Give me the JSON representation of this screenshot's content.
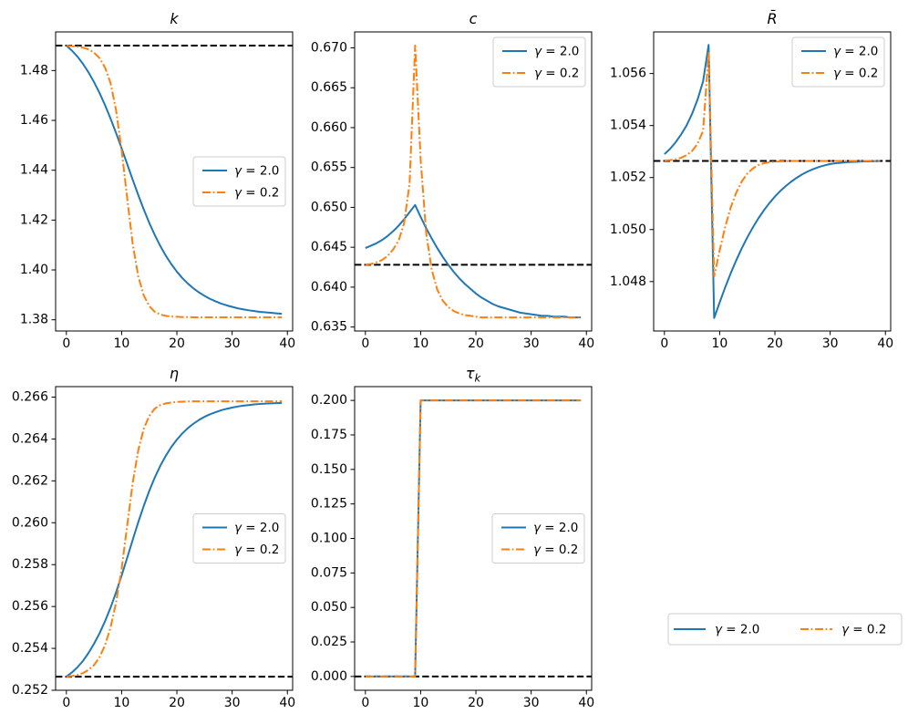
{
  "figure": {
    "background": "#ffffff",
    "colors": {
      "series_blue": "#1f77b4",
      "series_orange": "#ff7f0e",
      "steady_state_line": "#000000",
      "legend_border": "#cccccc"
    }
  },
  "chart_data": {
    "type": "line",
    "x": [
      0,
      1,
      2,
      3,
      4,
      5,
      6,
      7,
      8,
      9,
      10,
      11,
      12,
      13,
      14,
      15,
      16,
      17,
      18,
      19,
      20,
      21,
      22,
      23,
      24,
      25,
      26,
      27,
      28,
      29,
      30,
      31,
      32,
      33,
      34,
      35,
      36,
      37,
      38,
      39
    ],
    "xlabel": "",
    "xlim": [
      -1.95,
      40.95
    ],
    "xticks": [
      0,
      10,
      20,
      30,
      40
    ],
    "grid": false,
    "legend_labels": [
      "γ = 2.0",
      "γ = 0.2"
    ],
    "panels": [
      {
        "title": "k",
        "legend_loc": "center right",
        "ylim": [
          1.3755,
          1.4955
        ],
        "yticks": [
          1.38,
          1.4,
          1.42,
          1.44,
          1.46,
          1.48
        ],
        "ytick_decimals": 2,
        "steady_state": 1.49,
        "series": [
          {
            "name": "γ = 2.0",
            "color": "#1f77b4",
            "style": "solid",
            "values": [
              1.49,
              1.488,
              1.4856,
              1.4827,
              1.4793,
              1.4754,
              1.471,
              1.4661,
              1.4607,
              1.4549,
              1.4488,
              1.4425,
              1.4362,
              1.4301,
              1.4243,
              1.4189,
              1.414,
              1.4096,
              1.4057,
              1.4023,
              1.3993,
              1.3967,
              1.3945,
              1.3926,
              1.391,
              1.3896,
              1.3884,
              1.3874,
              1.3865,
              1.3858,
              1.3852,
              1.3846,
              1.3842,
              1.3838,
              1.3835,
              1.3832,
              1.383,
              1.3828,
              1.3826,
              1.3824
            ]
          },
          {
            "name": "γ = 0.2",
            "color": "#ff7f0e",
            "style": "dashdot",
            "values": [
              1.49,
              1.4898,
              1.4896,
              1.4892,
              1.4885,
              1.4872,
              1.485,
              1.4812,
              1.475,
              1.464,
              1.448,
              1.429,
              1.4105,
              1.3975,
              1.3898,
              1.3855,
              1.3832,
              1.3821,
              1.3816,
              1.3813,
              1.3812,
              1.3811,
              1.3811,
              1.381,
              1.381,
              1.381,
              1.381,
              1.381,
              1.381,
              1.381,
              1.381,
              1.381,
              1.381,
              1.381,
              1.381,
              1.381,
              1.381,
              1.381,
              1.381,
              1.381
            ]
          }
        ]
      },
      {
        "title": "c",
        "legend_loc": "upper right",
        "ylim": [
          0.6345,
          0.672
        ],
        "yticks": [
          0.635,
          0.64,
          0.645,
          0.65,
          0.655,
          0.66,
          0.665,
          0.67
        ],
        "ytick_decimals": 3,
        "steady_state": 0.6428,
        "series": [
          {
            "name": "γ = 2.0",
            "color": "#1f77b4",
            "style": "solid",
            "values": [
              0.6449,
              0.6452,
              0.6455,
              0.6459,
              0.6464,
              0.647,
              0.6477,
              0.6485,
              0.6494,
              0.6503,
              0.6488,
              0.6474,
              0.6461,
              0.6449,
              0.6438,
              0.6428,
              0.6419,
              0.6411,
              0.6404,
              0.6398,
              0.6392,
              0.6387,
              0.6383,
              0.6379,
              0.6376,
              0.6374,
              0.6372,
              0.637,
              0.6368,
              0.6367,
              0.6366,
              0.6365,
              0.6364,
              0.6364,
              0.6363,
              0.6363,
              0.6363,
              0.6362,
              0.6362,
              0.6362
            ]
          },
          {
            "name": "γ = 0.2",
            "color": "#ff7f0e",
            "style": "dashdot",
            "values": [
              0.6428,
              0.6429,
              0.6431,
              0.6434,
              0.6439,
              0.6447,
              0.6458,
              0.648,
              0.653,
              0.6703,
              0.656,
              0.6468,
              0.6422,
              0.6397,
              0.6383,
              0.6375,
              0.637,
              0.6367,
              0.6365,
              0.6364,
              0.6363,
              0.6362,
              0.6362,
              0.6362,
              0.6362,
              0.6362,
              0.6362,
              0.6362,
              0.6362,
              0.6362,
              0.6362,
              0.6362,
              0.6362,
              0.6362,
              0.6362,
              0.6362,
              0.6362,
              0.6362,
              0.6362,
              0.6362
            ]
          }
        ]
      },
      {
        "title": "R̄",
        "legend_loc": "upper right",
        "ylim": [
          1.0461,
          1.0576
        ],
        "yticks": [
          1.048,
          1.05,
          1.052,
          1.054,
          1.056
        ],
        "ytick_decimals": 3,
        "steady_state": 1.05264,
        "series": [
          {
            "name": "γ = 2.0",
            "color": "#1f77b4",
            "style": "solid",
            "values": [
              1.0529,
              1.0531,
              1.05335,
              1.05365,
              1.054,
              1.05445,
              1.055,
              1.0557,
              1.0571,
              1.0466,
              1.0472,
              1.04778,
              1.04832,
              1.04882,
              1.04928,
              1.0497,
              1.05008,
              1.05043,
              1.05074,
              1.05102,
              1.05127,
              1.05149,
              1.05168,
              1.05185,
              1.052,
              1.05213,
              1.05224,
              1.05233,
              1.05241,
              1.05247,
              1.05252,
              1.05255,
              1.05257,
              1.05259,
              1.0526,
              1.05261,
              1.05262,
              1.05262,
              1.05263,
              1.05263
            ]
          },
          {
            "name": "γ = 0.2",
            "color": "#ff7f0e",
            "style": "dashdot",
            "values": [
              1.05265,
              1.05267,
              1.0527,
              1.05276,
              1.05286,
              1.05302,
              1.0533,
              1.0538,
              1.0568,
              1.0482,
              1.0492,
              1.0501,
              1.05085,
              1.05142,
              1.05185,
              1.05215,
              1.05235,
              1.05248,
              1.05255,
              1.05259,
              1.05261,
              1.05262,
              1.05263,
              1.05264,
              1.05264,
              1.05264,
              1.05264,
              1.05264,
              1.05264,
              1.05264,
              1.05264,
              1.05264,
              1.05264,
              1.05264,
              1.05264,
              1.05264,
              1.05264,
              1.05264,
              1.05264,
              1.05264
            ]
          }
        ]
      },
      {
        "title": "η",
        "legend_loc": "center right",
        "ylim": [
          0.252,
          0.2665
        ],
        "yticks": [
          0.252,
          0.254,
          0.256,
          0.258,
          0.26,
          0.262,
          0.264,
          0.266
        ],
        "ytick_decimals": 3,
        "steady_state": 0.25265,
        "series": [
          {
            "name": "γ = 2.0",
            "color": "#1f77b4",
            "style": "solid",
            "values": [
              0.25265,
              0.25285,
              0.2531,
              0.2534,
              0.25378,
              0.25422,
              0.25472,
              0.2553,
              0.25595,
              0.25668,
              0.25748,
              0.25832,
              0.25918,
              0.26002,
              0.2608,
              0.26152,
              0.26216,
              0.26272,
              0.2632,
              0.26362,
              0.26397,
              0.26427,
              0.26452,
              0.26473,
              0.26491,
              0.26506,
              0.26518,
              0.26528,
              0.26537,
              0.26544,
              0.2655,
              0.26555,
              0.26559,
              0.26562,
              0.26565,
              0.26567,
              0.26569,
              0.2657,
              0.26571,
              0.26572
            ]
          },
          {
            "name": "γ = 0.2",
            "color": "#ff7f0e",
            "style": "dashdot",
            "values": [
              0.25265,
              0.25268,
              0.25273,
              0.25282,
              0.25297,
              0.2532,
              0.25358,
              0.25415,
              0.255,
              0.2562,
              0.2578,
              0.25985,
              0.2619,
              0.26345,
              0.26448,
              0.2651,
              0.26545,
              0.26562,
              0.2657,
              0.26574,
              0.26577,
              0.26578,
              0.26579,
              0.2658,
              0.2658,
              0.2658,
              0.2658,
              0.2658,
              0.2658,
              0.2658,
              0.2658,
              0.2658,
              0.2658,
              0.2658,
              0.2658,
              0.2658,
              0.2658,
              0.2658,
              0.2658,
              0.2658
            ]
          }
        ]
      },
      {
        "title": "τ_k",
        "legend_loc": "center right",
        "ylim": [
          -0.01,
          0.21
        ],
        "yticks": [
          0.0,
          0.025,
          0.05,
          0.075,
          0.1,
          0.125,
          0.15,
          0.175,
          0.2
        ],
        "ytick_decimals": 3,
        "steady_state": 0.0,
        "series": [
          {
            "name": "γ = 2.0",
            "color": "#1f77b4",
            "style": "solid",
            "values": [
              0,
              0,
              0,
              0,
              0,
              0,
              0,
              0,
              0,
              0,
              0.2,
              0.2,
              0.2,
              0.2,
              0.2,
              0.2,
              0.2,
              0.2,
              0.2,
              0.2,
              0.2,
              0.2,
              0.2,
              0.2,
              0.2,
              0.2,
              0.2,
              0.2,
              0.2,
              0.2,
              0.2,
              0.2,
              0.2,
              0.2,
              0.2,
              0.2,
              0.2,
              0.2,
              0.2,
              0.2
            ]
          },
          {
            "name": "γ = 0.2",
            "color": "#ff7f0e",
            "style": "dashdot",
            "values": [
              0,
              0,
              0,
              0,
              0,
              0,
              0,
              0,
              0,
              0,
              0.2,
              0.2,
              0.2,
              0.2,
              0.2,
              0.2,
              0.2,
              0.2,
              0.2,
              0.2,
              0.2,
              0.2,
              0.2,
              0.2,
              0.2,
              0.2,
              0.2,
              0.2,
              0.2,
              0.2,
              0.2,
              0.2,
              0.2,
              0.2,
              0.2,
              0.2,
              0.2,
              0.2,
              0.2,
              0.2
            ]
          }
        ]
      }
    ]
  },
  "figure_legend": {
    "entries": [
      {
        "label": "γ = 2.0",
        "color": "#1f77b4",
        "style": "solid"
      },
      {
        "label": "γ = 0.2",
        "color": "#ff7f0e",
        "style": "dashdot"
      }
    ]
  }
}
